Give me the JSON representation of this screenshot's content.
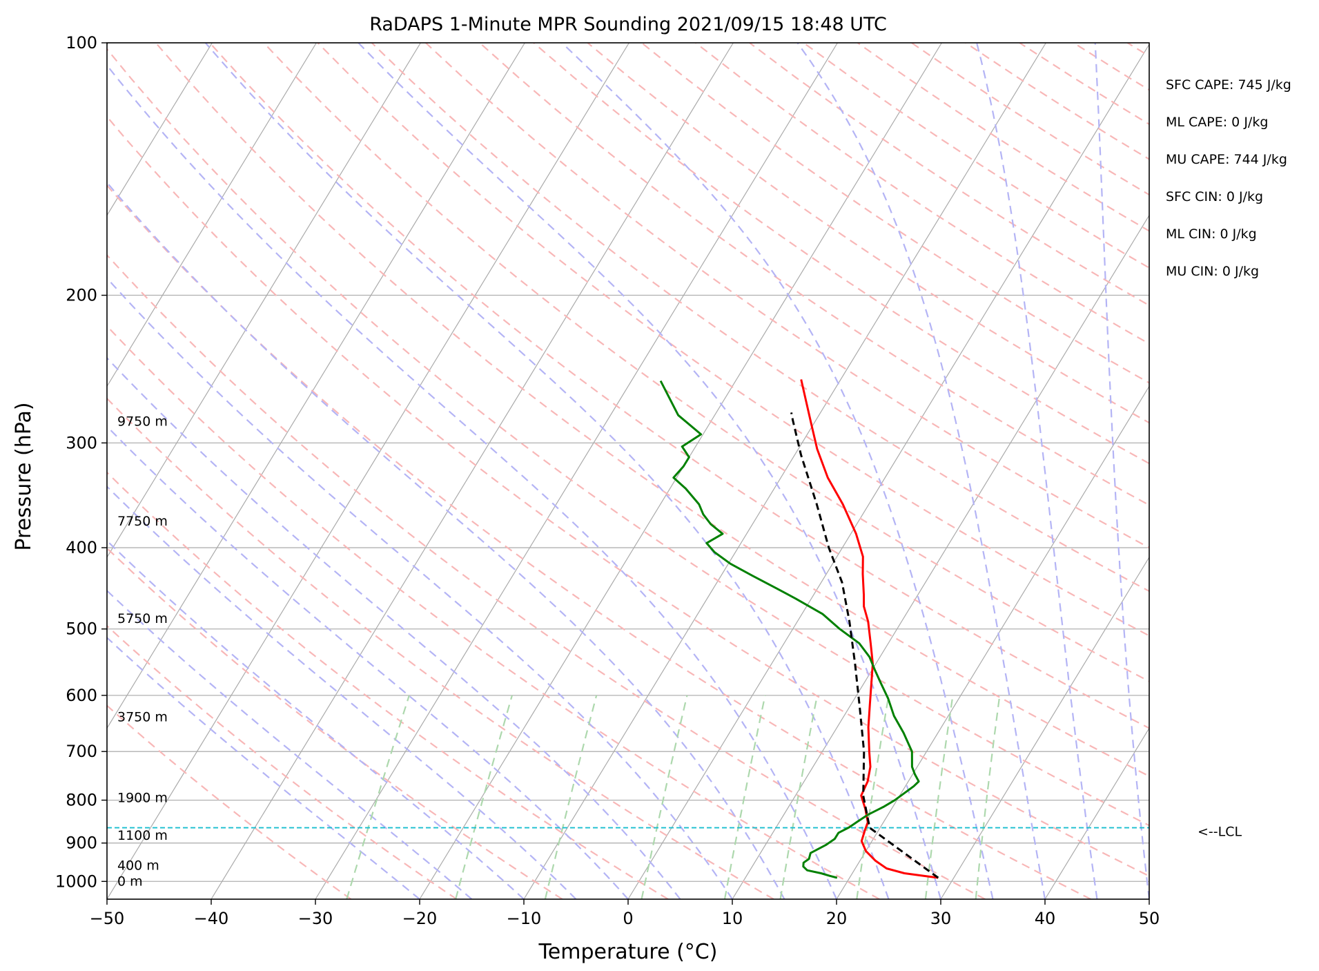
{
  "chart_data": {
    "type": "line",
    "title": "RaDAPS 1-Minute MPR Sounding 2021/09/15 18:48 UTC",
    "xlabel": "Temperature (°C)",
    "ylabel": "Pressure (hPa)",
    "xlim": [
      -50,
      50
    ],
    "ylim": [
      1050,
      100
    ],
    "y_scale": "log",
    "x_ticks": [
      -50,
      -40,
      -30,
      -20,
      -10,
      0,
      10,
      20,
      30,
      40,
      50
    ],
    "x_tick_labels": [
      "−50",
      "−40",
      "−30",
      "−20",
      "−10",
      "0",
      "10",
      "20",
      "30",
      "40",
      "50"
    ],
    "y_ticks": [
      100,
      200,
      300,
      400,
      500,
      600,
      700,
      800,
      900,
      1000
    ],
    "y_tick_labels": [
      "100",
      "200",
      "300",
      "400",
      "500",
      "600",
      "700",
      "800",
      "900",
      "1000"
    ],
    "skew": true,
    "grid": true,
    "series": [
      {
        "kind": "temperature",
        "color": "#ff0000",
        "style": "solid",
        "points": [
          [
            28.5,
            990
          ],
          [
            27,
            985
          ],
          [
            25,
            978
          ],
          [
            23,
            965
          ],
          [
            21.5,
            945
          ],
          [
            20,
            920
          ],
          [
            19,
            895
          ],
          [
            18.7,
            870
          ],
          [
            18.5,
            850
          ],
          [
            17.5,
            820
          ],
          [
            16.3,
            790
          ],
          [
            16.1,
            760
          ],
          [
            15.5,
            730
          ],
          [
            14.5,
            700
          ],
          [
            13,
            655
          ],
          [
            11.8,
            615
          ],
          [
            10.7,
            580
          ],
          [
            9.7,
            550
          ],
          [
            8.3,
            520
          ],
          [
            6.8,
            490
          ],
          [
            5.5,
            470
          ],
          [
            4.8,
            455
          ],
          [
            3.5,
            430
          ],
          [
            2.5,
            410
          ],
          [
            0.5,
            385
          ],
          [
            -2.5,
            355
          ],
          [
            -5.5,
            330
          ],
          [
            -8.2,
            305
          ],
          [
            -10.2,
            285
          ],
          [
            -12,
            268
          ],
          [
            -13.8,
            252
          ]
        ]
      },
      {
        "kind": "dewpoint",
        "color": "#008000",
        "style": "solid",
        "points": [
          [
            18.8,
            990
          ],
          [
            18,
            985
          ],
          [
            17,
            978
          ],
          [
            15.5,
            970
          ],
          [
            14.9,
            960
          ],
          [
            14.7,
            950
          ],
          [
            15,
            940
          ],
          [
            14.8,
            925
          ],
          [
            15.8,
            905
          ],
          [
            16.3,
            890
          ],
          [
            16.3,
            875
          ],
          [
            17,
            862
          ],
          [
            17.5,
            848
          ],
          [
            18.1,
            832
          ],
          [
            19.1,
            815
          ],
          [
            19.8,
            800
          ],
          [
            20.3,
            785
          ],
          [
            20.8,
            770
          ],
          [
            21,
            760
          ],
          [
            20.2,
            745
          ],
          [
            19.5,
            730
          ],
          [
            18.6,
            700
          ],
          [
            16.7,
            665
          ],
          [
            14.8,
            635
          ],
          [
            13.2,
            605
          ],
          [
            11.6,
            580
          ],
          [
            10.3,
            560
          ],
          [
            9,
            540
          ],
          [
            7.2,
            520
          ],
          [
            4.5,
            500
          ],
          [
            2,
            480
          ],
          [
            -1.5,
            460
          ],
          [
            -4,
            447
          ],
          [
            -7,
            432
          ],
          [
            -9.8,
            418
          ],
          [
            -12,
            405
          ],
          [
            -13.3,
            395
          ],
          [
            -12.3,
            385
          ],
          [
            -14,
            375
          ],
          [
            -15.3,
            365
          ],
          [
            -16.3,
            355
          ],
          [
            -18.5,
            340
          ],
          [
            -20.3,
            330
          ],
          [
            -20,
            320
          ],
          [
            -20,
            312
          ],
          [
            -21.3,
            303
          ],
          [
            -20.2,
            293
          ],
          [
            -23.5,
            278
          ],
          [
            -27.2,
            253
          ]
        ]
      },
      {
        "kind": "parcel",
        "color": "#000000",
        "style": "dashed",
        "points": [
          [
            28.5,
            990
          ],
          [
            19,
            863
          ],
          [
            16.5,
            790
          ],
          [
            14,
            700
          ],
          [
            11,
            620
          ],
          [
            8,
            550
          ],
          [
            5,
            490
          ],
          [
            2,
            440
          ],
          [
            -1.3,
            400
          ],
          [
            -5,
            355
          ],
          [
            -9.4,
            310
          ],
          [
            -12.2,
            282
          ],
          [
            -12.8,
            276
          ]
        ]
      }
    ],
    "lcl": {
      "pressure": 863,
      "label": "<--LCL"
    },
    "height_labels": [
      {
        "pressure": 283,
        "label": "9750 m"
      },
      {
        "pressure": 372,
        "label": "7750 m"
      },
      {
        "pressure": 486,
        "label": "5750 m"
      },
      {
        "pressure": 637,
        "label": "3750 m"
      },
      {
        "pressure": 795,
        "label": "1900 m"
      },
      {
        "pressure": 882,
        "label": "1100 m"
      },
      {
        "pressure": 958,
        "label": "400 m"
      },
      {
        "pressure": 1000,
        "label": "0 m"
      }
    ],
    "stats": [
      "SFC CAPE: 745 J/kg",
      "ML CAPE: 0 J/kg",
      "MU CAPE: 744 J/kg",
      "SFC CIN: 0 J/kg",
      "ML CIN: 0 J/kg",
      "MU CIN: 0 J/kg"
    ],
    "colors": {
      "isotherm": "#aaaaaa",
      "isobar": "#b0b0b0",
      "dry_adiabat": "#f8b7b7",
      "moist_adiabat": "#b4b4f5",
      "mixing_ratio": "#add8ad",
      "lcl_line": "#17becf"
    }
  }
}
